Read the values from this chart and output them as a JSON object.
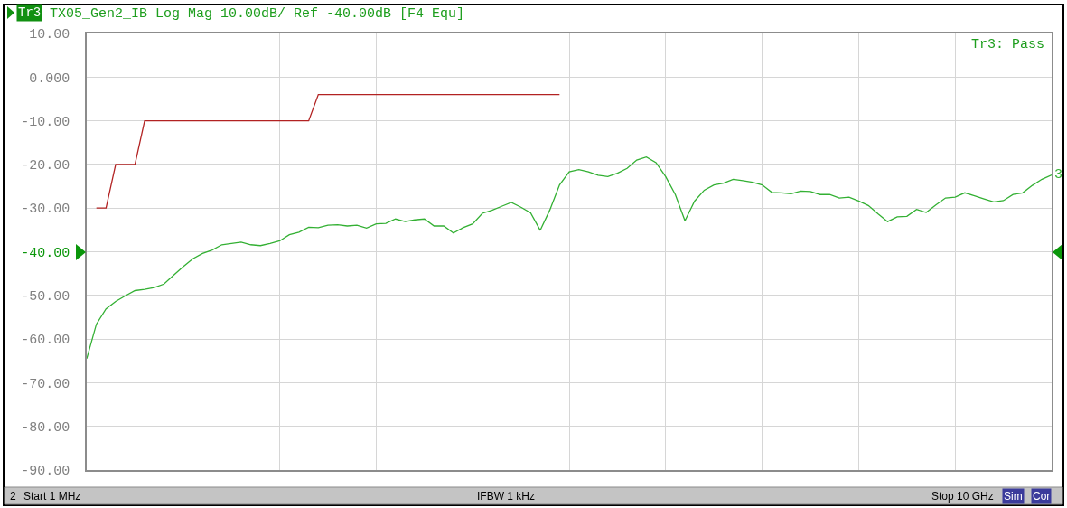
{
  "chart_data": {
    "type": "line",
    "title": "TX05_Gen2_IB Log Mag 10.00dB/ Ref -40.00dB [F4 Equ]",
    "categories": [
      null,
      null,
      null,
      null,
      null,
      null,
      null,
      null,
      null,
      null,
      null,
      null,
      null,
      null,
      null,
      null,
      null,
      null,
      null,
      null,
      null,
      null,
      null,
      null,
      null,
      null,
      null,
      null,
      null,
      null,
      null,
      null,
      null,
      null,
      null,
      null,
      null,
      null,
      null,
      null,
      null,
      null,
      null,
      null,
      null,
      null,
      null,
      null,
      null,
      null,
      null,
      null,
      null,
      null,
      null,
      null,
      null,
      null,
      null,
      null,
      null,
      null,
      null,
      null,
      null,
      null,
      null,
      null,
      null,
      null,
      null,
      null,
      null,
      null,
      null,
      null,
      null,
      null,
      null,
      null,
      null,
      null,
      null,
      null,
      null,
      null,
      null,
      null,
      null,
      null,
      null,
      null,
      null,
      null,
      null,
      null,
      null,
      null,
      null,
      null,
      null
    ],
    "series": [
      {
        "name": "3",
        "color": "#33b033",
        "values": [
          -64.5,
          -56.6,
          -53.1,
          -51.4,
          -50.1,
          -48.9,
          -48.6,
          -48.2,
          -47.4,
          -45.4,
          -43.4,
          -41.6,
          -40.4,
          -39.6,
          -38.4,
          -38.1,
          -37.8,
          -38.4,
          -38.6,
          -38.1,
          -37.5,
          -36.1,
          -35.5,
          -34.4,
          -34.5,
          -33.9,
          -33.8,
          -34.1,
          -33.9,
          -34.6,
          -33.6,
          -33.5,
          -32.5,
          -33.1,
          -32.7,
          -32.5,
          -34.1,
          -34.1,
          -35.7,
          -34.5,
          -33.6,
          -31.2,
          -30.5,
          -29.6,
          -28.7,
          -29.8,
          -31.1,
          -35.1,
          -30.4,
          -24.7,
          -21.7,
          -21.2,
          -21.7,
          -22.5,
          -22.8,
          -22.0,
          -20.9,
          -19.0,
          -18.3,
          -19.6,
          -22.8,
          -26.9,
          -32.9,
          -28.4,
          -25.9,
          -24.7,
          -24.3,
          -23.4,
          -23.7,
          -24.1,
          -24.7,
          -26.4,
          -26.5,
          -26.7,
          -26.1,
          -26.2,
          -26.9,
          -26.9,
          -27.7,
          -27.5,
          -28.4,
          -29.4,
          -31.3,
          -33.1,
          -32.0,
          -31.9,
          -30.3,
          -31.0,
          -29.3,
          -27.7,
          -27.5,
          -26.5,
          -27.2,
          -27.9,
          -28.6,
          -28.3,
          -26.9,
          -26.5,
          -24.8,
          -23.4,
          -22.4
        ]
      },
      {
        "color": "#b22222",
        "values": [
          null,
          -30,
          -30,
          -20,
          -20,
          -20,
          -10,
          -10,
          -10,
          -10,
          -10,
          -10,
          -10,
          -10,
          -10,
          -10,
          -10,
          -10,
          -10,
          -10,
          -10,
          -10,
          -10,
          -10,
          -4,
          -4,
          -4,
          -4,
          -4,
          -4,
          -4,
          -4,
          -4,
          -4,
          -4,
          -4,
          -4,
          -4,
          -4,
          -4,
          -4,
          -4,
          -4,
          -4,
          -4,
          -4,
          -4,
          -4,
          -4,
          -4,
          null,
          null,
          null,
          null,
          null,
          null,
          null,
          null,
          null,
          null,
          null,
          null,
          null,
          null,
          null,
          null,
          null,
          null,
          null,
          null,
          null,
          null,
          null,
          null,
          null,
          null,
          null,
          null,
          null,
          null,
          null,
          null,
          null,
          null,
          null,
          null,
          null,
          null,
          null,
          null,
          null,
          null,
          null,
          null,
          null,
          null,
          null,
          null,
          null,
          null,
          null
        ]
      }
    ],
    "ylim": [
      -90,
      10
    ],
    "yticks": [
      {
        "value": 10,
        "label": "10.00"
      },
      {
        "value": 0,
        "label": "0.000"
      },
      {
        "value": -10,
        "label": "-10.00"
      },
      {
        "value": -20,
        "label": "-20.00"
      },
      {
        "value": -30,
        "label": "-30.00"
      },
      {
        "value": -40,
        "label": "-40.00"
      },
      {
        "value": -50,
        "label": "-50.00"
      },
      {
        "value": -60,
        "label": "-60.00"
      },
      {
        "value": -70,
        "label": "-70.00"
      },
      {
        "value": -80,
        "label": "-80.00"
      },
      {
        "value": -90,
        "label": "-90.00"
      }
    ],
    "annotations": [
      "Tr3",
      "Tr3: Pass",
      "2",
      "Start 1 MHz",
      "IFBW 1 kHz",
      "Stop 10 GHz",
      "Sim",
      "Cor"
    ],
    "grid": true,
    "legend": false,
    "marker": "none",
    "line_style": "solid",
    "tick_labels": "y"
  }
}
